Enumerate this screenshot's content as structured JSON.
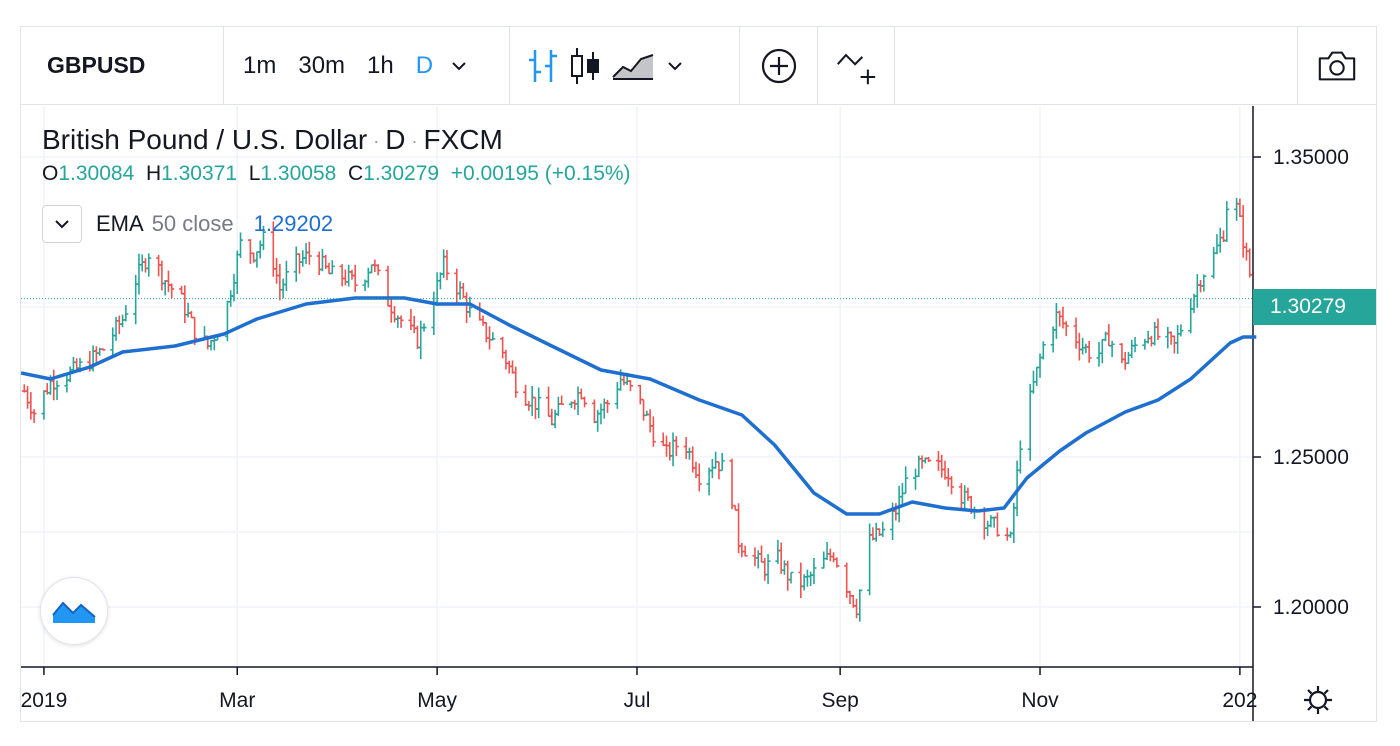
{
  "toolbar": {
    "symbol": "GBPUSD",
    "timeframes": [
      "1m",
      "30m",
      "1h",
      "D"
    ],
    "active_timeframe": "D",
    "icons": [
      "chevron-down-icon",
      "bars-icon",
      "candles-icon",
      "area-icon",
      "chevron-down-icon",
      "add-compare-icon",
      "indicators-icon",
      "camera-icon"
    ]
  },
  "legend": {
    "title": "British Pound / U.S. Dollar",
    "interval": "D",
    "source": "FXCM",
    "separator": "·",
    "o_label": "O",
    "o_value": "1.30084",
    "h_label": "H",
    "h_value": "1.30371",
    "l_label": "L",
    "l_value": "1.30058",
    "c_label": "C",
    "c_value": "1.30279",
    "change": "+0.00195 (+0.15%)"
  },
  "indicator": {
    "name": "EMA",
    "params": "50 close",
    "value": "1.29202"
  },
  "price_scale": {
    "ticks": [
      {
        "label": "1.35000",
        "value": 1.35
      },
      {
        "label": "1.25000",
        "value": 1.25
      },
      {
        "label": "1.20000",
        "value": 1.2
      }
    ],
    "current_price": "1.30279"
  },
  "time_scale": {
    "labels": [
      {
        "label": "2019",
        "day": 0
      },
      {
        "label": "Mar",
        "day": 59
      },
      {
        "label": "May",
        "day": 120
      },
      {
        "label": "Jul",
        "day": 181
      },
      {
        "label": "Sep",
        "day": 243
      },
      {
        "label": "Nov",
        "day": 304
      },
      {
        "label": "202",
        "day": 365
      }
    ]
  },
  "chart_data": {
    "type": "ohlc",
    "symbol": "GBPUSD",
    "xlabel": "",
    "ylabel": "",
    "ylim": [
      1.18,
      1.367
    ],
    "xlim_days": [
      -7,
      369
    ],
    "up_color": "#26a69a",
    "down_color": "#ef5350",
    "ema_color": "#1e6fd0",
    "closes": [
      [
        -6,
        1.272
      ],
      [
        -3,
        1.265
      ],
      [
        2,
        1.275
      ],
      [
        8,
        1.278
      ],
      [
        14,
        1.282
      ],
      [
        18,
        1.286
      ],
      [
        24,
        1.296
      ],
      [
        28,
        1.309
      ],
      [
        32,
        1.318
      ],
      [
        37,
        1.309
      ],
      [
        42,
        1.302
      ],
      [
        46,
        1.292
      ],
      [
        50,
        1.287
      ],
      [
        55,
        1.296
      ],
      [
        60,
        1.321
      ],
      [
        64,
        1.318
      ],
      [
        68,
        1.324
      ],
      [
        72,
        1.306
      ],
      [
        76,
        1.314
      ],
      [
        82,
        1.318
      ],
      [
        87,
        1.311
      ],
      [
        92,
        1.31
      ],
      [
        96,
        1.307
      ],
      [
        100,
        1.315
      ],
      [
        105,
        1.302
      ],
      [
        110,
        1.294
      ],
      [
        114,
        1.289
      ],
      [
        118,
        1.3
      ],
      [
        122,
        1.314
      ],
      [
        127,
        1.305
      ],
      [
        131,
        1.296
      ],
      [
        136,
        1.29
      ],
      [
        140,
        1.285
      ],
      [
        145,
        1.272
      ],
      [
        150,
        1.268
      ],
      [
        155,
        1.262
      ],
      [
        159,
        1.268
      ],
      [
        164,
        1.272
      ],
      [
        168,
        1.264
      ],
      [
        172,
        1.268
      ],
      [
        176,
        1.276
      ],
      [
        181,
        1.27
      ],
      [
        186,
        1.258
      ],
      [
        190,
        1.251
      ],
      [
        195,
        1.256
      ],
      [
        200,
        1.244
      ],
      [
        205,
        1.249
      ],
      [
        209,
        1.244
      ],
      [
        212,
        1.222
      ],
      [
        216,
        1.217
      ],
      [
        220,
        1.213
      ],
      [
        224,
        1.216
      ],
      [
        229,
        1.207
      ],
      [
        233,
        1.209
      ],
      [
        237,
        1.214
      ],
      [
        241,
        1.218
      ],
      [
        245,
        1.207
      ],
      [
        248,
        1.2
      ],
      [
        252,
        1.222
      ],
      [
        256,
        1.225
      ],
      [
        260,
        1.232
      ],
      [
        264,
        1.245
      ],
      [
        268,
        1.247
      ],
      [
        272,
        1.247
      ],
      [
        276,
        1.245
      ],
      [
        280,
        1.237
      ],
      [
        284,
        1.233
      ],
      [
        288,
        1.228
      ],
      [
        292,
        1.226
      ],
      [
        295,
        1.222
      ],
      [
        298,
        1.255
      ],
      [
        302,
        1.274
      ],
      [
        305,
        1.287
      ],
      [
        309,
        1.297
      ],
      [
        313,
        1.292
      ],
      [
        317,
        1.287
      ],
      [
        321,
        1.283
      ],
      [
        325,
        1.29
      ],
      [
        329,
        1.281
      ],
      [
        333,
        1.287
      ],
      [
        337,
        1.291
      ],
      [
        341,
        1.29
      ],
      [
        345,
        1.287
      ],
      [
        349,
        1.299
      ],
      [
        353,
        1.31
      ],
      [
        357,
        1.317
      ],
      [
        360,
        1.325
      ],
      [
        362,
        1.343
      ],
      [
        365,
        1.328
      ],
      [
        368,
        1.311
      ],
      [
        370,
        1.303
      ]
    ],
    "ema": [
      [
        -7,
        1.278
      ],
      [
        2,
        1.276
      ],
      [
        14,
        1.28
      ],
      [
        24,
        1.285
      ],
      [
        40,
        1.287
      ],
      [
        55,
        1.291
      ],
      [
        65,
        1.296
      ],
      [
        80,
        1.301
      ],
      [
        95,
        1.303
      ],
      [
        110,
        1.303
      ],
      [
        120,
        1.301
      ],
      [
        130,
        1.301
      ],
      [
        142,
        1.294
      ],
      [
        155,
        1.287
      ],
      [
        170,
        1.279
      ],
      [
        185,
        1.276
      ],
      [
        200,
        1.269
      ],
      [
        213,
        1.264
      ],
      [
        223,
        1.254
      ],
      [
        235,
        1.238
      ],
      [
        245,
        1.231
      ],
      [
        255,
        1.231
      ],
      [
        265,
        1.235
      ],
      [
        275,
        1.233
      ],
      [
        285,
        1.232
      ],
      [
        293,
        1.233
      ],
      [
        300,
        1.243
      ],
      [
        310,
        1.252
      ],
      [
        318,
        1.258
      ],
      [
        330,
        1.265
      ],
      [
        340,
        1.269
      ],
      [
        350,
        1.276
      ],
      [
        356,
        1.282
      ],
      [
        362,
        1.288
      ],
      [
        366,
        1.29
      ],
      [
        370,
        1.29
      ]
    ]
  }
}
